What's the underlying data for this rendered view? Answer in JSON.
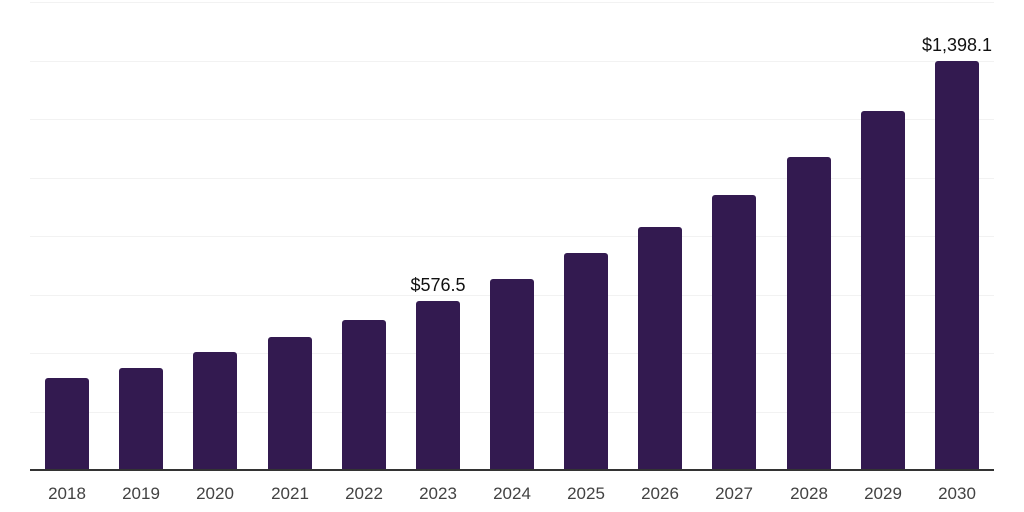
{
  "chart_data": {
    "type": "bar",
    "title": "",
    "xlabel": "",
    "ylabel": "",
    "categories": [
      "2018",
      "2019",
      "2020",
      "2021",
      "2022",
      "2023",
      "2024",
      "2025",
      "2026",
      "2027",
      "2028",
      "2029",
      "2030"
    ],
    "values": [
      315,
      349,
      404,
      455,
      513,
      576.5,
      654,
      743,
      832,
      941,
      1071,
      1228,
      1398.1
    ],
    "data_labels": [
      "",
      "",
      "",
      "",
      "",
      "$576.5",
      "",
      "",
      "",
      "",
      "",
      "",
      "$1,398.1"
    ],
    "labeled_values": {
      "2023": 576.5,
      "2030": 1398.1
    },
    "ylim": [
      0,
      1600
    ],
    "grid": {
      "horizontal": true,
      "step": 200,
      "color": "#f2f2f2"
    },
    "legend": "none",
    "colors": {
      "bar": "#331a50",
      "axis_line": "#333333",
      "tick_label": "#424242",
      "data_label": "#111111",
      "background": "#ffffff"
    }
  }
}
